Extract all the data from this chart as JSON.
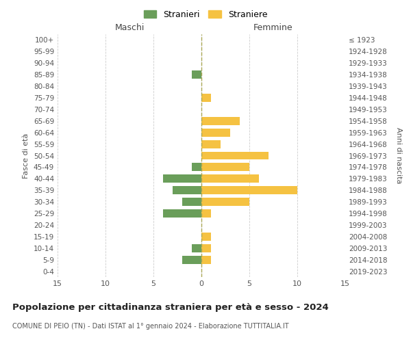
{
  "age_groups": [
    "100+",
    "95-99",
    "90-94",
    "85-89",
    "80-84",
    "75-79",
    "70-74",
    "65-69",
    "60-64",
    "55-59",
    "50-54",
    "45-49",
    "40-44",
    "35-39",
    "30-34",
    "25-29",
    "20-24",
    "15-19",
    "10-14",
    "5-9",
    "0-4"
  ],
  "birth_years": [
    "≤ 1923",
    "1924-1928",
    "1929-1933",
    "1934-1938",
    "1939-1943",
    "1944-1948",
    "1949-1953",
    "1954-1958",
    "1959-1963",
    "1964-1968",
    "1969-1973",
    "1974-1978",
    "1979-1983",
    "1984-1988",
    "1989-1993",
    "1994-1998",
    "1999-2003",
    "2004-2008",
    "2009-2013",
    "2014-2018",
    "2019-2023"
  ],
  "maschi": [
    0,
    0,
    0,
    1,
    0,
    0,
    0,
    0,
    0,
    0,
    0,
    1,
    4,
    3,
    2,
    4,
    0,
    0,
    1,
    2,
    0
  ],
  "femmine": [
    0,
    0,
    0,
    0,
    0,
    1,
    0,
    4,
    3,
    2,
    7,
    5,
    6,
    10,
    5,
    1,
    0,
    1,
    1,
    1,
    0
  ],
  "maschi_color": "#6a9e5a",
  "femmine_color": "#f5c242",
  "title": "Popolazione per cittadinanza straniera per età e sesso - 2024",
  "subtitle": "COMUNE DI PEIO (TN) - Dati ISTAT al 1° gennaio 2024 - Elaborazione TUTTITALIA.IT",
  "xlabel_left": "Maschi",
  "xlabel_right": "Femmine",
  "ylabel_left": "Fasce di età",
  "ylabel_right": "Anni di nascita",
  "legend_maschi": "Stranieri",
  "legend_femmine": "Straniere",
  "xmin": -15,
  "xmax": 15,
  "background_color": "#ffffff",
  "grid_color": "#cccccc"
}
